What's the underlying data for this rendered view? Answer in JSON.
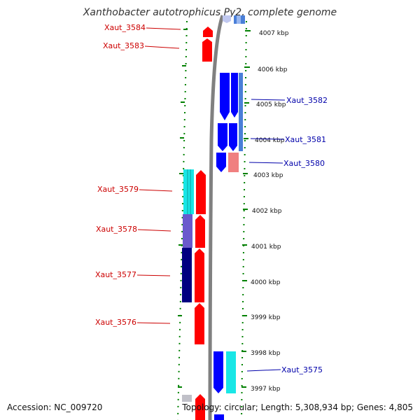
{
  "title": "Xanthobacter autotrophicus Py2, complete genome",
  "footer": {
    "accession": "Accession: NC_009720",
    "topology": "Topology: circular; Length: 5,308,934 bp; Genes: 4,805"
  },
  "colors": {
    "red_gene": "#ff0000",
    "blue_gene": "#0000ff",
    "light_blue_gene": "#4a7fd8",
    "cyan_gene": "#19e6e6",
    "purple_gene": "#6a5acd",
    "navy_gene": "#000080",
    "pink_gene": "#f08080",
    "gray_gene": "#c0c0c8",
    "left_label": "#cc0000",
    "right_label": "#0000aa",
    "dots": "#008000",
    "backbone": "#808080"
  },
  "scale_ticks": [
    "4007 kbp",
    "4006 kbp",
    "4005 kbp",
    "4004 kbp",
    "4003 kbp",
    "4002 kbp",
    "4001 kbp",
    "4000 kbp",
    "3999 kbp",
    "3998 kbp",
    "3997 kbp"
  ],
  "left_labels": [
    "Xaut_3584",
    "Xaut_3583",
    "Xaut_3579",
    "Xaut_3578",
    "Xaut_3577",
    "Xaut_3576"
  ],
  "right_labels": [
    "Xaut_3582",
    "Xaut_3581",
    "Xaut_3580",
    "Xaut_3575"
  ]
}
